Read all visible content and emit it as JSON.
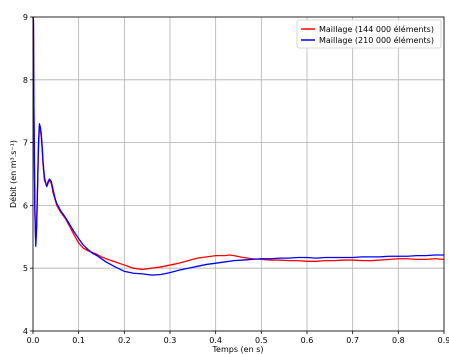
{
  "chart_data": {
    "type": "line",
    "title": "",
    "xlabel": "Temps (en s)",
    "ylabel": "Débit (en m³.s⁻¹)",
    "xlim": [
      0,
      0.9
    ],
    "ylim": [
      4,
      9
    ],
    "x_ticks": [
      "0.0",
      "0.1",
      "0.2",
      "0.3",
      "0.4",
      "0.5",
      "0.6",
      "0.7",
      "0.8",
      "0.9"
    ],
    "y_ticks": [
      "4",
      "5",
      "6",
      "7",
      "8",
      "9"
    ],
    "grid": true,
    "legend_position": "top-right",
    "series": [
      {
        "name": "Maillage (144 000 éléments)",
        "color": "#ff0000",
        "x": [
          0.0,
          0.001,
          0.002,
          0.004,
          0.006,
          0.008,
          0.01,
          0.012,
          0.014,
          0.016,
          0.018,
          0.02,
          0.022,
          0.025,
          0.028,
          0.03,
          0.033,
          0.036,
          0.04,
          0.044,
          0.048,
          0.052,
          0.056,
          0.06,
          0.065,
          0.07,
          0.08,
          0.09,
          0.1,
          0.11,
          0.12,
          0.13,
          0.14,
          0.15,
          0.16,
          0.18,
          0.2,
          0.22,
          0.24,
          0.26,
          0.28,
          0.3,
          0.32,
          0.34,
          0.36,
          0.38,
          0.4,
          0.42,
          0.43,
          0.44,
          0.46,
          0.48,
          0.5,
          0.52,
          0.54,
          0.56,
          0.58,
          0.6,
          0.62,
          0.64,
          0.66,
          0.68,
          0.7,
          0.72,
          0.74,
          0.76,
          0.78,
          0.8,
          0.82,
          0.84,
          0.86,
          0.88,
          0.9
        ],
        "values": [
          9.0,
          8.9,
          7.4,
          5.9,
          5.4,
          5.7,
          6.3,
          6.9,
          7.25,
          7.2,
          7.1,
          6.9,
          6.65,
          6.4,
          6.35,
          6.3,
          6.35,
          6.4,
          6.35,
          6.2,
          6.1,
          6.0,
          5.95,
          5.9,
          5.85,
          5.8,
          5.67,
          5.53,
          5.4,
          5.32,
          5.28,
          5.25,
          5.22,
          5.18,
          5.15,
          5.1,
          5.05,
          5.0,
          4.98,
          5.0,
          5.02,
          5.05,
          5.08,
          5.12,
          5.16,
          5.18,
          5.2,
          5.2,
          5.21,
          5.2,
          5.17,
          5.15,
          5.14,
          5.13,
          5.13,
          5.12,
          5.12,
          5.11,
          5.11,
          5.12,
          5.12,
          5.13,
          5.13,
          5.12,
          5.12,
          5.13,
          5.14,
          5.15,
          5.15,
          5.14,
          5.14,
          5.15,
          5.14
        ]
      },
      {
        "name": "Maillage (210 000 éléments)",
        "color": "#0000ff",
        "x": [
          0.0,
          0.001,
          0.002,
          0.004,
          0.006,
          0.008,
          0.01,
          0.012,
          0.014,
          0.016,
          0.018,
          0.02,
          0.022,
          0.025,
          0.028,
          0.03,
          0.033,
          0.036,
          0.04,
          0.044,
          0.048,
          0.052,
          0.056,
          0.06,
          0.065,
          0.07,
          0.08,
          0.09,
          0.1,
          0.11,
          0.12,
          0.13,
          0.14,
          0.15,
          0.16,
          0.18,
          0.2,
          0.22,
          0.24,
          0.26,
          0.28,
          0.3,
          0.32,
          0.34,
          0.36,
          0.38,
          0.4,
          0.42,
          0.44,
          0.46,
          0.48,
          0.5,
          0.52,
          0.54,
          0.56,
          0.58,
          0.6,
          0.62,
          0.64,
          0.66,
          0.68,
          0.7,
          0.72,
          0.74,
          0.76,
          0.78,
          0.8,
          0.82,
          0.84,
          0.86,
          0.88,
          0.9
        ],
        "values": [
          9.0,
          8.95,
          7.6,
          6.0,
          5.35,
          5.65,
          6.3,
          7.0,
          7.3,
          7.25,
          7.15,
          6.95,
          6.7,
          6.45,
          6.35,
          6.3,
          6.38,
          6.42,
          6.38,
          6.25,
          6.12,
          6.03,
          5.98,
          5.92,
          5.87,
          5.82,
          5.7,
          5.58,
          5.47,
          5.37,
          5.3,
          5.24,
          5.2,
          5.15,
          5.1,
          5.02,
          4.95,
          4.92,
          4.91,
          4.89,
          4.9,
          4.93,
          4.97,
          5.0,
          5.03,
          5.06,
          5.08,
          5.1,
          5.12,
          5.13,
          5.14,
          5.15,
          5.15,
          5.16,
          5.16,
          5.17,
          5.17,
          5.16,
          5.17,
          5.17,
          5.17,
          5.17,
          5.18,
          5.18,
          5.18,
          5.19,
          5.19,
          5.19,
          5.2,
          5.2,
          5.21,
          5.21
        ]
      }
    ]
  }
}
